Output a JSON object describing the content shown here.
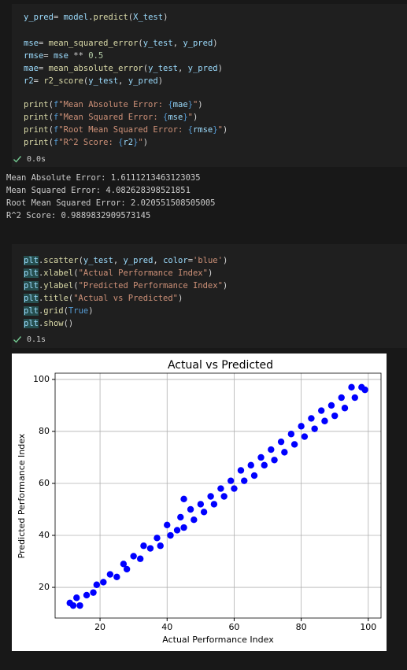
{
  "cells": [
    {
      "code_blocks": [
        [
          "y_pred= model.predict(X_test)"
        ],
        [
          "mse= mean_squared_error(y_test, y_pred)",
          "rmse= mse ** 0.5",
          "mae= mean_absolute_error(y_test, y_pred)",
          "r2= r2_score(y_test, y_pred)"
        ],
        [
          "print(f\"Mean Absolute Error: {mae}\")",
          "print(f\"Mean Squared Error: {mse}\")",
          "print(f\"Root Mean Squared Error: {rmse}\")",
          "print(f\"R^2 Score: {r2}\")"
        ]
      ],
      "status": "0.0s",
      "output": [
        "Mean Absolute Error: 1.6111213463123035",
        "Mean Squared Error: 4.082628398521851",
        "Root Mean Squared Error: 2.020551508505005",
        "R^2 Score: 0.9889832909573145"
      ]
    },
    {
      "code_blocks": [
        [
          "plt.scatter(y_test, y_pred, color='blue')",
          "plt.xlabel(\"Actual Performance Index\")",
          "plt.ylabel(\"Predicted Performance Index\")",
          "plt.title(\"Actual vs Predicted\")",
          "plt.grid(True)",
          "plt.show()"
        ]
      ],
      "status": "0.1s"
    }
  ],
  "chart_data": {
    "type": "scatter",
    "title": "Actual vs Predicted",
    "x_label": "Actual Performance Index",
    "y_label": "Predicted Performance Index",
    "x": [
      11,
      12,
      13,
      14,
      16,
      18,
      19,
      21,
      23,
      25,
      27,
      28,
      30,
      32,
      33,
      35,
      37,
      38,
      40,
      41,
      43,
      44,
      45,
      47,
      48,
      50,
      51,
      53,
      54,
      56,
      57,
      59,
      60,
      62,
      63,
      65,
      66,
      68,
      69,
      71,
      72,
      74,
      75,
      77,
      78,
      80,
      81,
      83,
      84,
      86,
      87,
      89,
      90,
      92,
      93,
      95,
      96,
      98,
      99,
      45
    ],
    "values": [
      14,
      13,
      16,
      13,
      17,
      18,
      21,
      22,
      25,
      24,
      29,
      27,
      32,
      31,
      36,
      35,
      39,
      36,
      44,
      40,
      42,
      47,
      43,
      50,
      46,
      52,
      49,
      55,
      52,
      58,
      55,
      61,
      58,
      65,
      61,
      67,
      63,
      70,
      67,
      73,
      69,
      76,
      72,
      79,
      75,
      82,
      78,
      85,
      81,
      88,
      84,
      90,
      86,
      93,
      89,
      97,
      93,
      97,
      96,
      54
    ],
    "color": "#0000ff",
    "xlim": [
      6.6,
      103.8
    ],
    "xticks": [
      20,
      40,
      60,
      80,
      100
    ],
    "ylim": [
      8.2,
      102.4
    ],
    "yticks": [
      20,
      40,
      60,
      80,
      100
    ],
    "grid": true
  }
}
